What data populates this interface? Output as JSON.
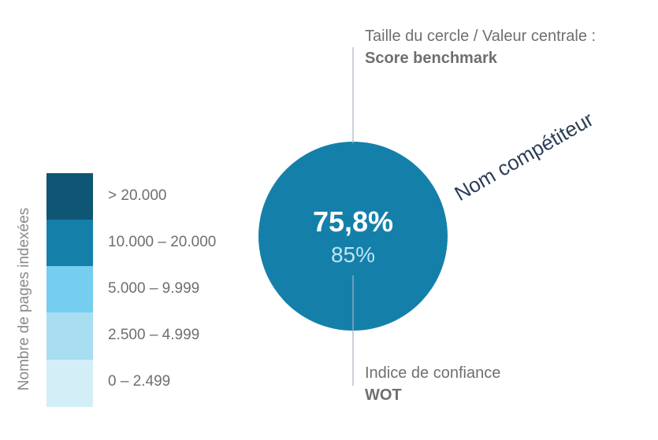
{
  "legend": {
    "axis_title": "Nombre de pages indexées",
    "items": [
      {
        "label": "> 20.000",
        "color": "#0e5673"
      },
      {
        "label": "10.000 – 20.000",
        "color": "#1480aa"
      },
      {
        "label": "5.000 – 9.999",
        "color": "#75cdef"
      },
      {
        "label": "2.500 – 4.999",
        "color": "#a8ddf2"
      },
      {
        "label": "0 – 2.499",
        "color": "#d4eef8"
      }
    ]
  },
  "annotations": {
    "top_line1": "Taille du cercle / Valeur centrale :",
    "top_line2": "Score benchmark",
    "bottom_line1": "Indice de confiance",
    "bottom_line2": "WOT"
  },
  "circle": {
    "main_value": "75,8%",
    "sub_value": "85%",
    "color": "#1480aa",
    "competitor_label": "Nom compétiteur"
  },
  "colors": {
    "leader_line": "#a8b0c0"
  }
}
